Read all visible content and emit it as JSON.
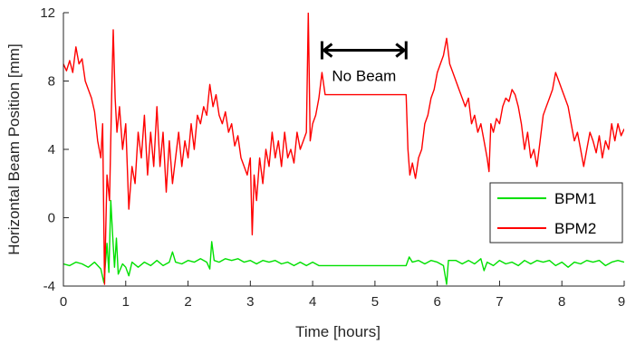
{
  "chart_data": {
    "type": "line",
    "title": "",
    "xlabel": "Time [hours]",
    "ylabel": "Horizontal Beam Position [mm]",
    "xlim": [
      0,
      9
    ],
    "ylim": [
      -4,
      12
    ],
    "xticks": [
      "0",
      "1",
      "2",
      "3",
      "4",
      "5",
      "6",
      "7",
      "8",
      "9"
    ],
    "yticks": [
      "-4",
      "0",
      "4",
      "8",
      "12"
    ],
    "grid": false,
    "legend_position": "lower-right",
    "annotation": {
      "text": "No Beam",
      "x_start": 4.15,
      "x_end": 5.5,
      "y": 9.8
    },
    "series": [
      {
        "name": "BPM1",
        "color": "#00e000",
        "points": [
          [
            0,
            -2.7
          ],
          [
            0.1,
            -2.8
          ],
          [
            0.2,
            -2.6
          ],
          [
            0.3,
            -2.7
          ],
          [
            0.4,
            -2.9
          ],
          [
            0.5,
            -2.6
          ],
          [
            0.6,
            -3.0
          ],
          [
            0.65,
            -3.8
          ],
          [
            0.7,
            -1.5
          ],
          [
            0.73,
            -3.2
          ],
          [
            0.76,
            1.0
          ],
          [
            0.79,
            -1.0
          ],
          [
            0.82,
            -2.9
          ],
          [
            0.85,
            -1.2
          ],
          [
            0.88,
            -3.3
          ],
          [
            0.95,
            -2.7
          ],
          [
            1.0,
            -2.9
          ],
          [
            1.05,
            -3.4
          ],
          [
            1.1,
            -2.6
          ],
          [
            1.2,
            -2.9
          ],
          [
            1.3,
            -2.6
          ],
          [
            1.4,
            -2.8
          ],
          [
            1.5,
            -2.5
          ],
          [
            1.6,
            -2.8
          ],
          [
            1.7,
            -2.6
          ],
          [
            1.75,
            -2.0
          ],
          [
            1.8,
            -2.6
          ],
          [
            1.9,
            -2.7
          ],
          [
            2.0,
            -2.5
          ],
          [
            2.1,
            -2.6
          ],
          [
            2.2,
            -2.4
          ],
          [
            2.3,
            -2.6
          ],
          [
            2.35,
            -3.0
          ],
          [
            2.38,
            -1.4
          ],
          [
            2.42,
            -2.5
          ],
          [
            2.5,
            -2.6
          ],
          [
            2.6,
            -2.4
          ],
          [
            2.7,
            -2.5
          ],
          [
            2.8,
            -2.4
          ],
          [
            2.9,
            -2.6
          ],
          [
            3.0,
            -2.5
          ],
          [
            3.1,
            -2.7
          ],
          [
            3.2,
            -2.5
          ],
          [
            3.3,
            -2.6
          ],
          [
            3.4,
            -2.5
          ],
          [
            3.5,
            -2.7
          ],
          [
            3.6,
            -2.6
          ],
          [
            3.7,
            -2.8
          ],
          [
            3.8,
            -2.6
          ],
          [
            3.9,
            -2.8
          ],
          [
            4.0,
            -2.6
          ],
          [
            4.1,
            -2.8
          ],
          [
            4.2,
            -2.8
          ],
          [
            5.5,
            -2.8
          ],
          [
            5.55,
            -2.3
          ],
          [
            5.6,
            -2.6
          ],
          [
            5.7,
            -2.5
          ],
          [
            5.8,
            -2.7
          ],
          [
            5.9,
            -2.5
          ],
          [
            6.0,
            -2.6
          ],
          [
            6.1,
            -2.8
          ],
          [
            6.15,
            -3.9
          ],
          [
            6.18,
            -2.5
          ],
          [
            6.3,
            -2.5
          ],
          [
            6.4,
            -2.7
          ],
          [
            6.5,
            -2.5
          ],
          [
            6.6,
            -2.7
          ],
          [
            6.7,
            -2.4
          ],
          [
            6.75,
            -3.1
          ],
          [
            6.8,
            -2.6
          ],
          [
            6.9,
            -2.8
          ],
          [
            7.0,
            -2.5
          ],
          [
            7.1,
            -2.7
          ],
          [
            7.2,
            -2.6
          ],
          [
            7.3,
            -2.8
          ],
          [
            7.4,
            -2.5
          ],
          [
            7.5,
            -2.7
          ],
          [
            7.6,
            -2.5
          ],
          [
            7.7,
            -2.6
          ],
          [
            7.8,
            -2.5
          ],
          [
            7.9,
            -2.8
          ],
          [
            8.0,
            -2.6
          ],
          [
            8.1,
            -2.9
          ],
          [
            8.2,
            -2.6
          ],
          [
            8.3,
            -2.7
          ],
          [
            8.4,
            -2.5
          ],
          [
            8.5,
            -2.6
          ],
          [
            8.6,
            -2.5
          ],
          [
            8.7,
            -2.8
          ],
          [
            8.8,
            -2.6
          ],
          [
            8.9,
            -2.5
          ],
          [
            9.0,
            -2.6
          ]
        ]
      },
      {
        "name": "BPM2",
        "color": "#ff0000",
        "points": [
          [
            0,
            9.0
          ],
          [
            0.05,
            8.6
          ],
          [
            0.1,
            9.2
          ],
          [
            0.15,
            8.5
          ],
          [
            0.2,
            10.0
          ],
          [
            0.25,
            9.0
          ],
          [
            0.3,
            9.3
          ],
          [
            0.35,
            8.0
          ],
          [
            0.4,
            7.5
          ],
          [
            0.45,
            7.0
          ],
          [
            0.5,
            6.2
          ],
          [
            0.55,
            4.5
          ],
          [
            0.6,
            3.5
          ],
          [
            0.63,
            5.5
          ],
          [
            0.66,
            -3.9
          ],
          [
            0.7,
            2.5
          ],
          [
            0.74,
            1.0
          ],
          [
            0.78,
            8.0
          ],
          [
            0.8,
            11.0
          ],
          [
            0.83,
            7.0
          ],
          [
            0.86,
            5.0
          ],
          [
            0.9,
            6.5
          ],
          [
            0.95,
            4.0
          ],
          [
            1.0,
            5.5
          ],
          [
            1.05,
            0.5
          ],
          [
            1.1,
            3.0
          ],
          [
            1.15,
            2.0
          ],
          [
            1.2,
            5.0
          ],
          [
            1.25,
            3.5
          ],
          [
            1.3,
            6.0
          ],
          [
            1.35,
            2.5
          ],
          [
            1.4,
            5.0
          ],
          [
            1.45,
            3.0
          ],
          [
            1.5,
            6.5
          ],
          [
            1.55,
            3.0
          ],
          [
            1.6,
            5.0
          ],
          [
            1.65,
            1.5
          ],
          [
            1.7,
            4.5
          ],
          [
            1.75,
            2.0
          ],
          [
            1.8,
            3.5
          ],
          [
            1.85,
            5.0
          ],
          [
            1.9,
            3.0
          ],
          [
            1.95,
            4.5
          ],
          [
            2.0,
            3.5
          ],
          [
            2.05,
            5.5
          ],
          [
            2.1,
            4.0
          ],
          [
            2.15,
            6.0
          ],
          [
            2.2,
            5.5
          ],
          [
            2.25,
            6.5
          ],
          [
            2.3,
            6.0
          ],
          [
            2.35,
            7.8
          ],
          [
            2.4,
            6.5
          ],
          [
            2.45,
            7.2
          ],
          [
            2.5,
            6.0
          ],
          [
            2.55,
            5.5
          ],
          [
            2.6,
            6.2
          ],
          [
            2.65,
            5.0
          ],
          [
            2.7,
            5.5
          ],
          [
            2.75,
            4.2
          ],
          [
            2.8,
            4.8
          ],
          [
            2.85,
            3.5
          ],
          [
            2.9,
            3.0
          ],
          [
            2.95,
            2.5
          ],
          [
            3.0,
            3.5
          ],
          [
            3.03,
            -1.0
          ],
          [
            3.06,
            2.5
          ],
          [
            3.1,
            1.0
          ],
          [
            3.15,
            3.5
          ],
          [
            3.2,
            2.0
          ],
          [
            3.25,
            4.0
          ],
          [
            3.3,
            3.0
          ],
          [
            3.35,
            5.0
          ],
          [
            3.4,
            3.5
          ],
          [
            3.45,
            4.5
          ],
          [
            3.5,
            3.0
          ],
          [
            3.55,
            5.0
          ],
          [
            3.6,
            3.5
          ],
          [
            3.65,
            4.0
          ],
          [
            3.7,
            3.2
          ],
          [
            3.75,
            5.0
          ],
          [
            3.8,
            4.0
          ],
          [
            3.85,
            4.5
          ],
          [
            3.9,
            5.0
          ],
          [
            3.93,
            12.0
          ],
          [
            3.96,
            4.5
          ],
          [
            4.0,
            5.5
          ],
          [
            4.05,
            6.0
          ],
          [
            4.1,
            7.0
          ],
          [
            4.15,
            8.5
          ],
          [
            4.2,
            7.2
          ],
          [
            5.5,
            7.2
          ],
          [
            5.53,
            4.0
          ],
          [
            5.56,
            2.5
          ],
          [
            5.6,
            3.2
          ],
          [
            5.65,
            2.3
          ],
          [
            5.7,
            3.5
          ],
          [
            5.75,
            4.0
          ],
          [
            5.8,
            5.5
          ],
          [
            5.85,
            6.0
          ],
          [
            5.9,
            7.0
          ],
          [
            5.95,
            7.5
          ],
          [
            6.0,
            8.5
          ],
          [
            6.05,
            9.0
          ],
          [
            6.1,
            9.5
          ],
          [
            6.15,
            10.5
          ],
          [
            6.2,
            9.0
          ],
          [
            6.25,
            8.5
          ],
          [
            6.3,
            8.0
          ],
          [
            6.35,
            7.5
          ],
          [
            6.4,
            7.0
          ],
          [
            6.45,
            6.5
          ],
          [
            6.5,
            7.0
          ],
          [
            6.55,
            5.5
          ],
          [
            6.6,
            6.0
          ],
          [
            6.65,
            5.0
          ],
          [
            6.7,
            5.5
          ],
          [
            6.75,
            4.5
          ],
          [
            6.8,
            3.5
          ],
          [
            6.83,
            2.7
          ],
          [
            6.86,
            5.5
          ],
          [
            6.9,
            5.0
          ],
          [
            6.95,
            5.8
          ],
          [
            7.0,
            5.5
          ],
          [
            7.05,
            6.5
          ],
          [
            7.1,
            7.0
          ],
          [
            7.15,
            6.8
          ],
          [
            7.2,
            7.5
          ],
          [
            7.25,
            7.2
          ],
          [
            7.3,
            6.5
          ],
          [
            7.35,
            5.5
          ],
          [
            7.4,
            4.0
          ],
          [
            7.45,
            5.0
          ],
          [
            7.5,
            3.5
          ],
          [
            7.55,
            4.0
          ],
          [
            7.6,
            3.0
          ],
          [
            7.65,
            4.5
          ],
          [
            7.7,
            6.0
          ],
          [
            7.75,
            6.5
          ],
          [
            7.8,
            7.0
          ],
          [
            7.85,
            7.5
          ],
          [
            7.9,
            8.5
          ],
          [
            7.95,
            8.0
          ],
          [
            8.0,
            7.5
          ],
          [
            8.05,
            7.0
          ],
          [
            8.1,
            6.5
          ],
          [
            8.15,
            5.5
          ],
          [
            8.2,
            4.5
          ],
          [
            8.25,
            5.0
          ],
          [
            8.3,
            4.0
          ],
          [
            8.35,
            3.0
          ],
          [
            8.4,
            4.0
          ],
          [
            8.45,
            5.0
          ],
          [
            8.5,
            4.5
          ],
          [
            8.55,
            3.8
          ],
          [
            8.6,
            4.8
          ],
          [
            8.65,
            3.5
          ],
          [
            8.7,
            4.5
          ],
          [
            8.75,
            4.0
          ],
          [
            8.8,
            5.5
          ],
          [
            8.85,
            4.5
          ],
          [
            8.9,
            5.5
          ],
          [
            8.95,
            4.8
          ],
          [
            9.0,
            5.2
          ]
        ]
      }
    ]
  }
}
